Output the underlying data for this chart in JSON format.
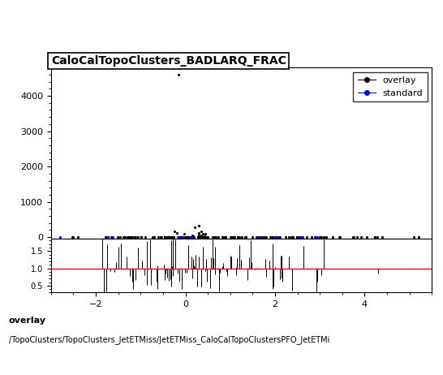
{
  "title": "CaloCalTopoClusters_BADLARQ_FRAC",
  "footer_line1": "overlay",
  "footer_line2": "/TopoClusters/TopoClusters_JetETMiss/JetETMiss_CaloCalTopoClustersPFO_JetETMi",
  "legend_entries": [
    "overlay",
    "standard"
  ],
  "xlim": [
    -3.0,
    5.5
  ],
  "ylim_main": [
    -50,
    4800
  ],
  "ylim_ratio": [
    0.3,
    1.85
  ],
  "ratio_yticks": [
    0.5,
    1.0,
    1.5
  ],
  "main_yticks": [
    0,
    1000,
    2000,
    3000,
    4000
  ],
  "xticks": [
    -2,
    0,
    2,
    4
  ],
  "bg_color": "#ffffff",
  "overlay_color": "black",
  "standard_color": "blue",
  "ratio_line_color": "red",
  "title_fontsize": 10,
  "footer1_fontsize": 8,
  "footer2_fontsize": 7
}
